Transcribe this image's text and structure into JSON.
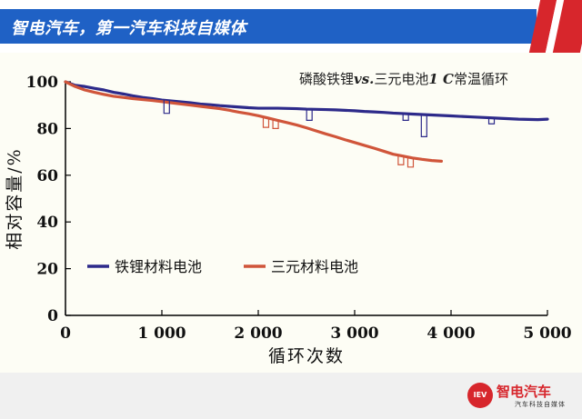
{
  "header": {
    "title": "智电汽车，第一汽车科技自媒体"
  },
  "logo": {
    "badge": "IEV",
    "name": "智电汽车",
    "sub": "汽车科技自媒体"
  },
  "colors": {
    "lfp": "#2d2a8a",
    "ncm": "#d0553a",
    "header_blue": "#1f61c5",
    "header_red": "#d7262c"
  },
  "chart_data": {
    "type": "line",
    "title": "磷酸铁锂vs.三元电池1 C常温循环",
    "title_parts": [
      "磷酸铁锂",
      "vs.",
      "三元电池",
      "1 C",
      "常温循环"
    ],
    "xlabel": "循环次数",
    "ylabel": "相对容量/%",
    "xlim": [
      0,
      5000
    ],
    "ylim": [
      0,
      100
    ],
    "x_ticks": [
      0,
      1000,
      2000,
      3000,
      4000,
      5000
    ],
    "x_tick_labels": [
      "0",
      "1 000",
      "2 000",
      "3 000",
      "4 000",
      "5 000"
    ],
    "y_ticks": [
      0,
      20,
      40,
      60,
      80,
      100
    ],
    "y_tick_labels": [
      "0",
      "20",
      "40",
      "60",
      "80",
      "100"
    ],
    "grid": false,
    "legend_position": "lower-left",
    "series": [
      {
        "name": "铁锂材料电池",
        "color": "#2d2a8a",
        "x": [
          0,
          100,
          200,
          300,
          400,
          500,
          600,
          700,
          800,
          900,
          1000,
          1100,
          1200,
          1300,
          1400,
          1500,
          1600,
          1700,
          1800,
          1900,
          2000,
          2100,
          2200,
          2300,
          2400,
          2500,
          2600,
          2700,
          2800,
          2900,
          3000,
          3100,
          3200,
          3300,
          3400,
          3500,
          3600,
          3700,
          3800,
          3900,
          4000,
          4100,
          4200,
          4300,
          4400,
          4500,
          4600,
          4700,
          4800,
          4900,
          5000
        ],
        "y": [
          100,
          98.5,
          98,
          97.2,
          96.5,
          95.5,
          94.8,
          94,
          93.3,
          92.8,
          92.2,
          91.8,
          91.4,
          91,
          90.5,
          90.2,
          89.8,
          89.5,
          89.2,
          88.9,
          88.7,
          88.7,
          88.7,
          88.6,
          88.5,
          88.3,
          88.2,
          88.1,
          88,
          87.8,
          87.6,
          87.3,
          87.1,
          86.9,
          86.6,
          86.4,
          86.2,
          86,
          85.8,
          85.6,
          85.4,
          85.2,
          85,
          84.8,
          84.6,
          84.4,
          84.2,
          84,
          83.9,
          83.8,
          84
        ]
      },
      {
        "name": "三元材料电池",
        "color": "#d0553a",
        "x": [
          0,
          100,
          200,
          300,
          400,
          500,
          600,
          700,
          800,
          900,
          1000,
          1100,
          1200,
          1300,
          1400,
          1500,
          1600,
          1700,
          1800,
          1900,
          2000,
          2100,
          2200,
          2300,
          2400,
          2500,
          2600,
          2700,
          2800,
          2900,
          3000,
          3100,
          3200,
          3300,
          3400,
          3500,
          3600,
          3700,
          3800,
          3900
        ],
        "y": [
          100,
          98,
          96.5,
          95.5,
          94.6,
          93.8,
          93.3,
          92.8,
          92.4,
          92,
          91.5,
          91,
          90.5,
          90,
          89.5,
          89,
          88.5,
          87.8,
          87,
          86.3,
          85.5,
          84.5,
          83.5,
          82.5,
          81.5,
          80.3,
          79,
          77.7,
          76.5,
          75.2,
          74,
          72.8,
          71.6,
          70.3,
          69,
          68.2,
          67.4,
          66.8,
          66.3,
          66
        ]
      }
    ],
    "dips": [
      {
        "series": 0,
        "x": 1050,
        "y": 86.5
      },
      {
        "series": 0,
        "x": 2530,
        "y": 83.5
      },
      {
        "series": 0,
        "x": 3530,
        "y": 83.5
      },
      {
        "series": 0,
        "x": 3720,
        "y": 76.5
      },
      {
        "series": 0,
        "x": 4420,
        "y": 82
      },
      {
        "series": 1,
        "x": 2080,
        "y": 80.5
      },
      {
        "series": 1,
        "x": 2180,
        "y": 80
      },
      {
        "series": 1,
        "x": 3480,
        "y": 64.5
      },
      {
        "series": 1,
        "x": 3580,
        "y": 63.5
      }
    ]
  }
}
